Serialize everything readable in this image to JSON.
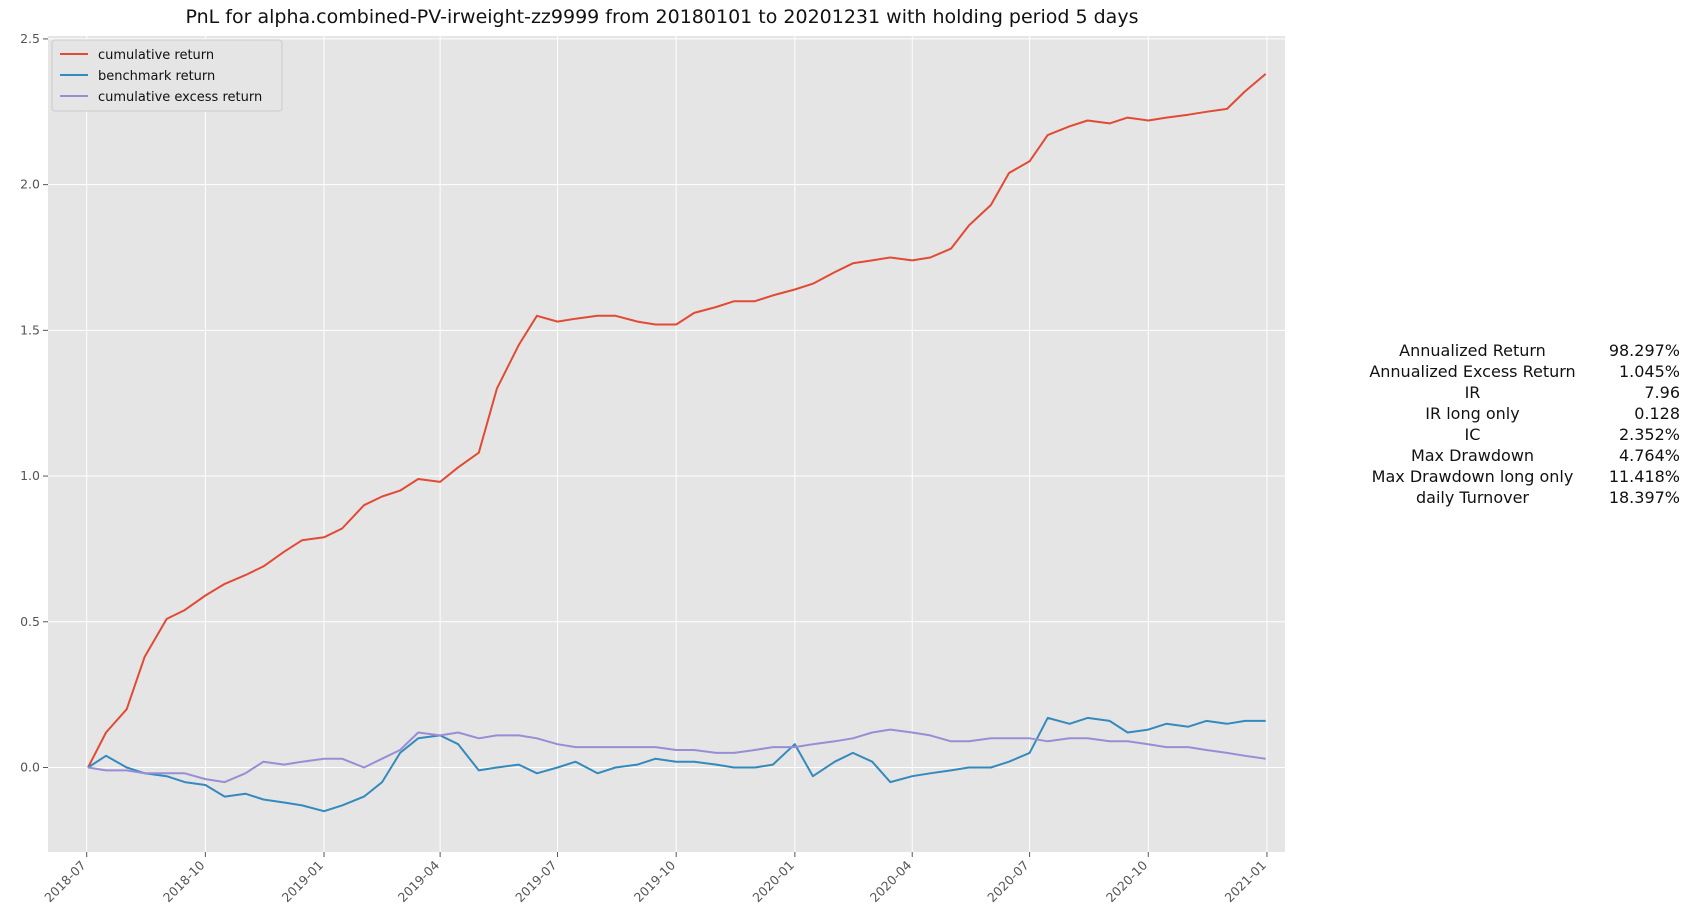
{
  "chart_data": {
    "type": "line",
    "title": "PnL for alpha.combined-PV-irweight-zz9999 from 20180101 to 20201231 with holding period 5 days",
    "xlabel": "",
    "ylabel": "",
    "ylim": [
      -0.29,
      2.51
    ],
    "yticks": [
      "0.0",
      "0.5",
      "1.0",
      "1.5",
      "2.0",
      "2.5"
    ],
    "ytick_values": [
      0.0,
      0.5,
      1.0,
      1.5,
      2.0,
      2.5
    ],
    "xticks": [
      "2018-07",
      "2018-10",
      "2019-01",
      "2019-04",
      "2019-07",
      "2019-10",
      "2020-01",
      "2020-04",
      "2020-07",
      "2020-10",
      "2021-01"
    ],
    "xtick_values": [
      "2018-07-01",
      "2018-10-01",
      "2019-01-01",
      "2019-04-01",
      "2019-07-01",
      "2019-10-01",
      "2020-01-01",
      "2020-04-01",
      "2020-07-01",
      "2020-10-01",
      "2021-01-01"
    ],
    "xlim": [
      "2018-06-01",
      "2021-01-15"
    ],
    "grid": true,
    "legend_position": "top-left",
    "x": [
      "2018-07-02",
      "2018-07-16",
      "2018-08-01",
      "2018-08-15",
      "2018-09-01",
      "2018-09-15",
      "2018-10-01",
      "2018-10-16",
      "2018-11-01",
      "2018-11-15",
      "2018-12-01",
      "2018-12-15",
      "2019-01-01",
      "2019-01-15",
      "2019-02-01",
      "2019-02-15",
      "2019-03-01",
      "2019-03-15",
      "2019-04-01",
      "2019-04-15",
      "2019-05-01",
      "2019-05-15",
      "2019-06-01",
      "2019-06-15",
      "2019-07-01",
      "2019-07-15",
      "2019-08-01",
      "2019-08-15",
      "2019-09-01",
      "2019-09-15",
      "2019-10-01",
      "2019-10-15",
      "2019-11-01",
      "2019-11-15",
      "2019-12-01",
      "2019-12-15",
      "2020-01-01",
      "2020-01-15",
      "2020-02-01",
      "2020-02-15",
      "2020-03-01",
      "2020-03-15",
      "2020-04-01",
      "2020-04-15",
      "2020-05-01",
      "2020-05-15",
      "2020-06-01",
      "2020-06-15",
      "2020-07-01",
      "2020-07-15",
      "2020-08-01",
      "2020-08-15",
      "2020-09-01",
      "2020-09-15",
      "2020-10-01",
      "2020-10-15",
      "2020-11-01",
      "2020-11-15",
      "2020-12-01",
      "2020-12-15",
      "2020-12-31"
    ],
    "series": [
      {
        "name": "cumulative return",
        "color": "#E24A33",
        "values": [
          0.0,
          0.12,
          0.2,
          0.38,
          0.51,
          0.54,
          0.59,
          0.63,
          0.66,
          0.69,
          0.74,
          0.78,
          0.79,
          0.82,
          0.9,
          0.93,
          0.95,
          0.99,
          0.98,
          1.03,
          1.08,
          1.3,
          1.45,
          1.55,
          1.53,
          1.54,
          1.55,
          1.55,
          1.53,
          1.52,
          1.52,
          1.56,
          1.58,
          1.6,
          1.6,
          1.62,
          1.64,
          1.66,
          1.7,
          1.73,
          1.74,
          1.75,
          1.74,
          1.75,
          1.78,
          1.86,
          1.93,
          2.04,
          2.08,
          2.17,
          2.2,
          2.22,
          2.21,
          2.23,
          2.22,
          2.23,
          2.24,
          2.25,
          2.26,
          2.32,
          2.38
        ]
      },
      {
        "name": "benchmark return",
        "color": "#348ABD",
        "values": [
          0.0,
          0.04,
          0.0,
          -0.02,
          -0.03,
          -0.05,
          -0.06,
          -0.1,
          -0.09,
          -0.11,
          -0.12,
          -0.13,
          -0.15,
          -0.13,
          -0.1,
          -0.05,
          0.05,
          0.1,
          0.11,
          0.08,
          -0.01,
          0.0,
          0.01,
          -0.02,
          0.0,
          0.02,
          -0.02,
          0.0,
          0.01,
          0.03,
          0.02,
          0.02,
          0.01,
          0.0,
          0.0,
          0.01,
          0.08,
          -0.03,
          0.02,
          0.05,
          0.02,
          -0.05,
          -0.03,
          -0.02,
          -0.01,
          0.0,
          0.0,
          0.02,
          0.05,
          0.17,
          0.15,
          0.17,
          0.16,
          0.12,
          0.13,
          0.15,
          0.14,
          0.16,
          0.15,
          0.16,
          0.16
        ]
      },
      {
        "name": "cumulative excess return",
        "color": "#988ED5",
        "values": [
          0.0,
          -0.01,
          -0.01,
          -0.02,
          -0.02,
          -0.02,
          -0.04,
          -0.05,
          -0.02,
          0.02,
          0.01,
          0.02,
          0.03,
          0.03,
          0.0,
          0.03,
          0.06,
          0.12,
          0.11,
          0.12,
          0.1,
          0.11,
          0.11,
          0.1,
          0.08,
          0.07,
          0.07,
          0.07,
          0.07,
          0.07,
          0.06,
          0.06,
          0.05,
          0.05,
          0.06,
          0.07,
          0.07,
          0.08,
          0.09,
          0.1,
          0.12,
          0.13,
          0.12,
          0.11,
          0.09,
          0.09,
          0.1,
          0.1,
          0.1,
          0.09,
          0.1,
          0.1,
          0.09,
          0.09,
          0.08,
          0.07,
          0.07,
          0.06,
          0.05,
          0.04,
          0.03
        ]
      }
    ]
  },
  "stats": [
    {
      "label": "Annualized Return",
      "value": "98.297%"
    },
    {
      "label": "Annualized Excess Return",
      "value": "1.045%"
    },
    {
      "label": "IR",
      "value": "7.96"
    },
    {
      "label": "IR long only",
      "value": "0.128"
    },
    {
      "label": "IC",
      "value": "2.352%"
    },
    {
      "label": "Max Drawdown",
      "value": "4.764%"
    },
    {
      "label": "Max Drawdown long only",
      "value": "11.418%"
    },
    {
      "label": "daily Turnover",
      "value": "18.397%"
    }
  ],
  "colors": {
    "plot_background": "#E5E5E5",
    "grid": "#FFFFFF",
    "tick_text": "#555555"
  }
}
